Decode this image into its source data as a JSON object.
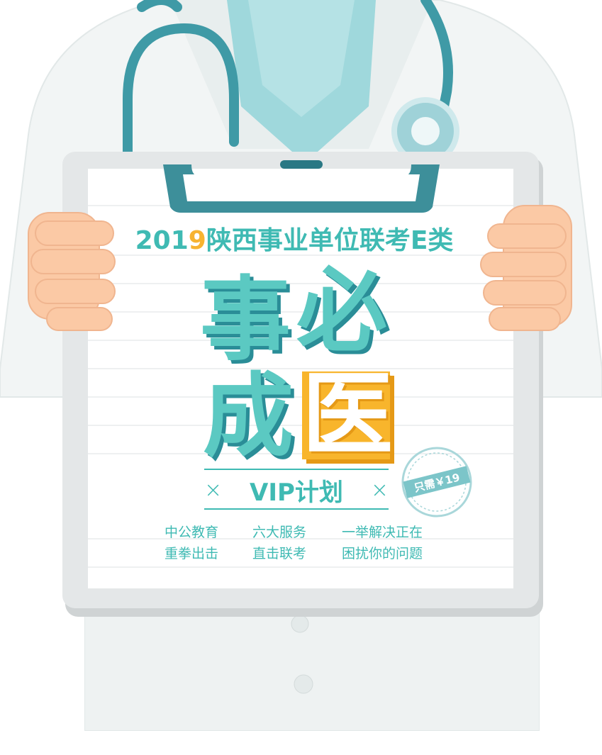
{
  "headline": {
    "year_prefix": "201",
    "year_highlight": "9",
    "title_rest": "陕西事业单位联考E类"
  },
  "big_chars": {
    "c1": "事",
    "c2": "必",
    "c3": "成",
    "c4": "医"
  },
  "vip": {
    "left_mark": "×",
    "label": "VIP计划",
    "right_mark": "×"
  },
  "stamp": {
    "text": "只需￥19"
  },
  "desc": {
    "col1": [
      "中公教育",
      "重拳出击"
    ],
    "col2": [
      "六大服务",
      "直击联考"
    ],
    "col3": [
      "一举解决正在",
      "困扰你的问题"
    ]
  },
  "colors": {
    "teal": "#5bc9c2",
    "teal_dark": "#2a8d97",
    "orange": "#f8b52c",
    "coat": "#f3f6f6",
    "skin": "#fbc9a5"
  }
}
